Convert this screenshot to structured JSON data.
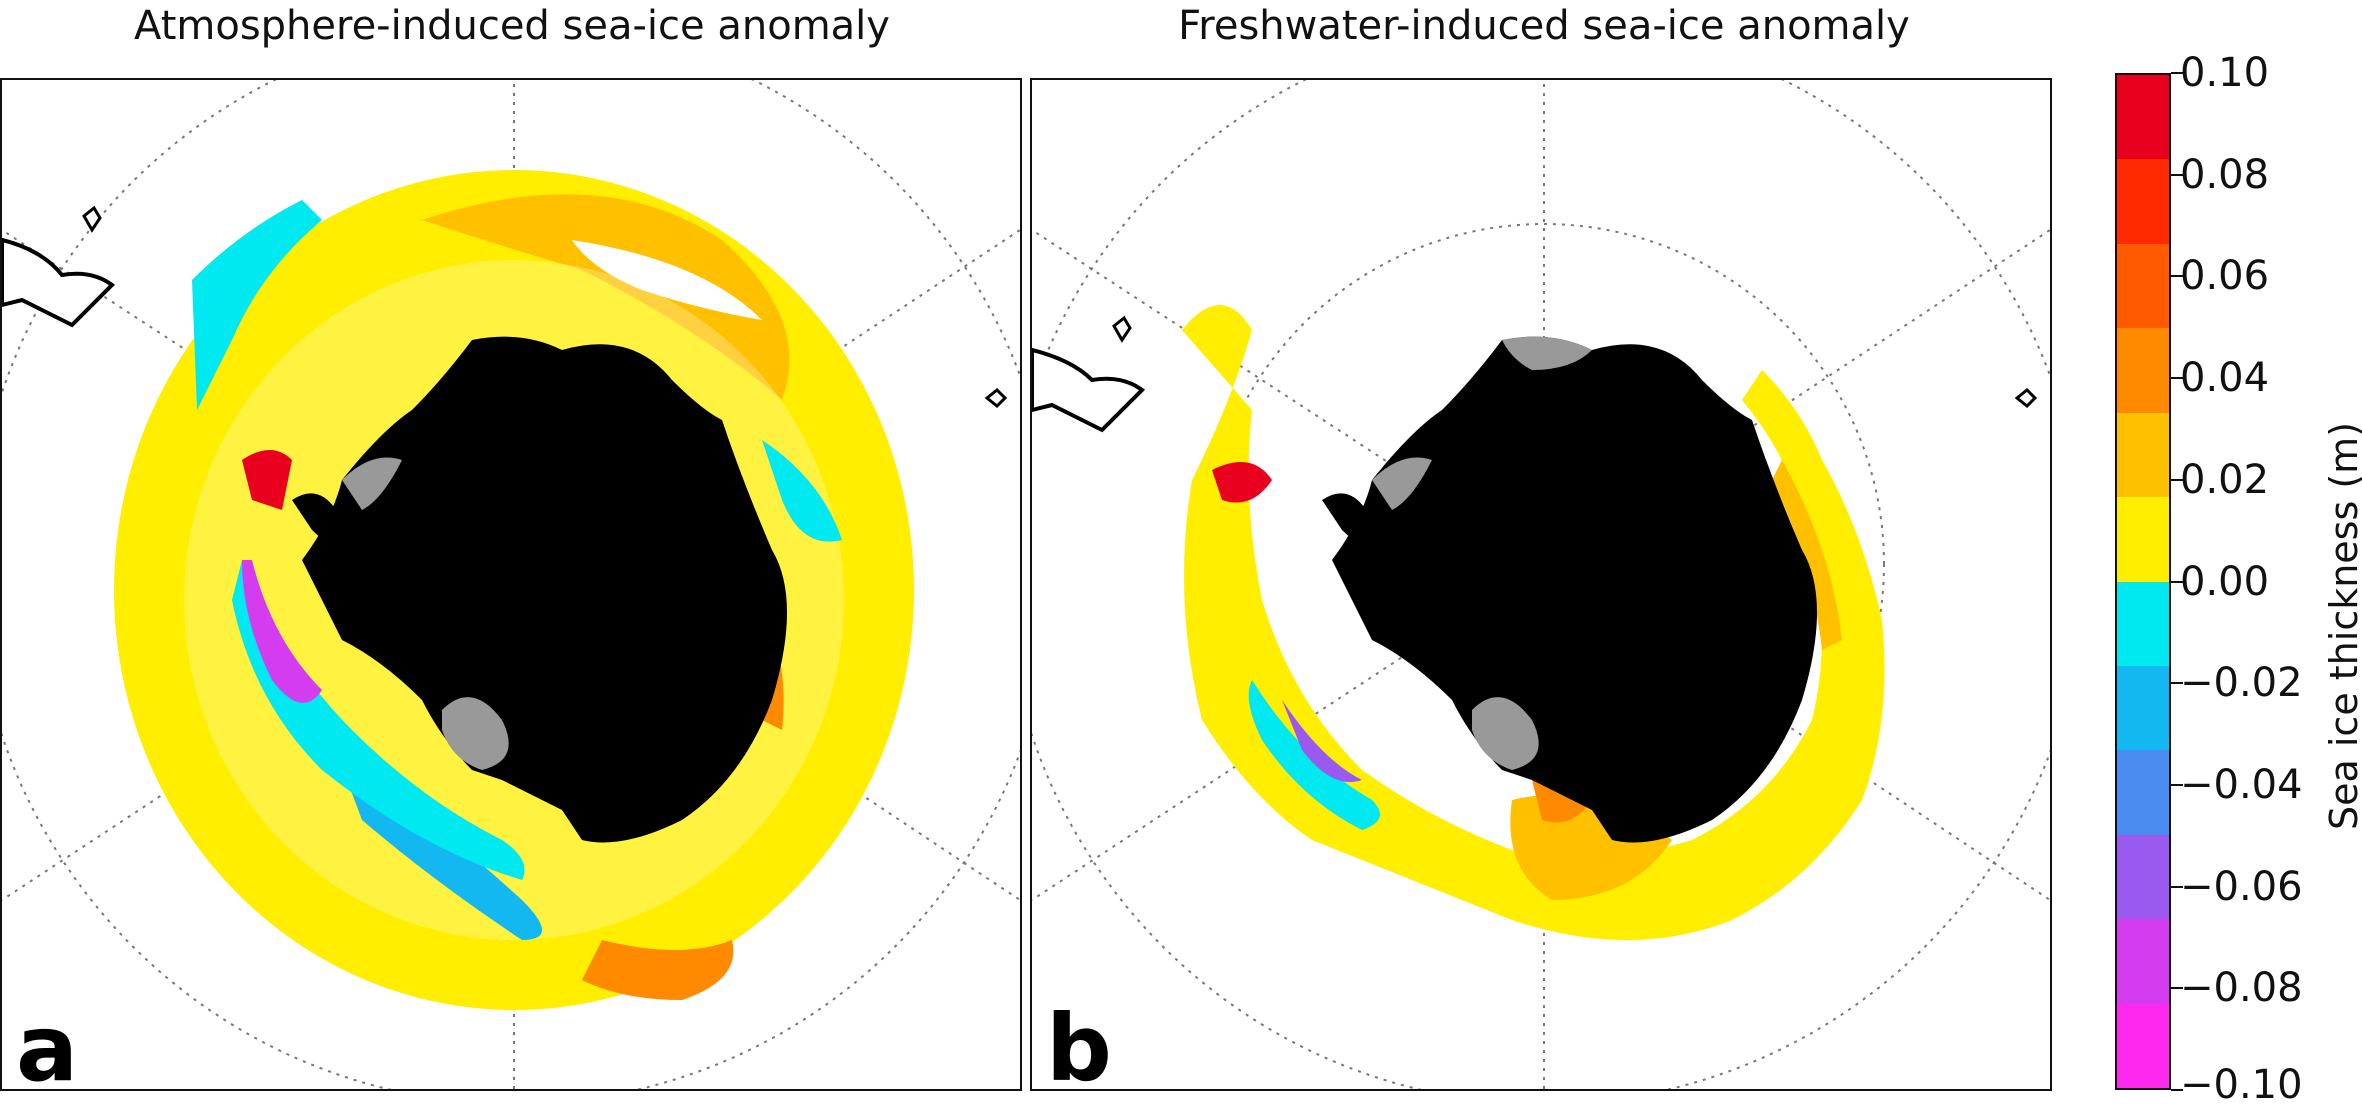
{
  "panels": [
    {
      "title": "Atmosphere-induced sea-ice anomaly",
      "letter": "a"
    },
    {
      "title": "Freshwater-induced sea-ice anomaly",
      "letter": "b"
    }
  ],
  "colorbar": {
    "label": "Sea ice thickness (m)",
    "ticks": [
      "0.10",
      "0.08",
      "0.06",
      "0.04",
      "0.02",
      "0.00",
      "−0.02",
      "−0.04",
      "−0.06",
      "−0.08",
      "−0.10"
    ],
    "colors": [
      "#e8001e",
      "#ff2a00",
      "#ff5a00",
      "#ff8a00",
      "#ffc000",
      "#ffee00",
      "#00e8f0",
      "#12b8ef",
      "#4a8cf0",
      "#9a5af0",
      "#d43cf0",
      "#ff28ee"
    ]
  },
  "colors": {
    "land": "#000000",
    "ice_shelf": "#999999",
    "positive_small": "#ffee00",
    "positive_mid": "#ffc000",
    "positive_high": "#ff8a00",
    "positive_max": "#e8001e",
    "negative_small": "#00e8f0",
    "negative_mid": "#12b8ef",
    "negative_high": "#9a5af0",
    "negative_max": "#ff28ee"
  }
}
